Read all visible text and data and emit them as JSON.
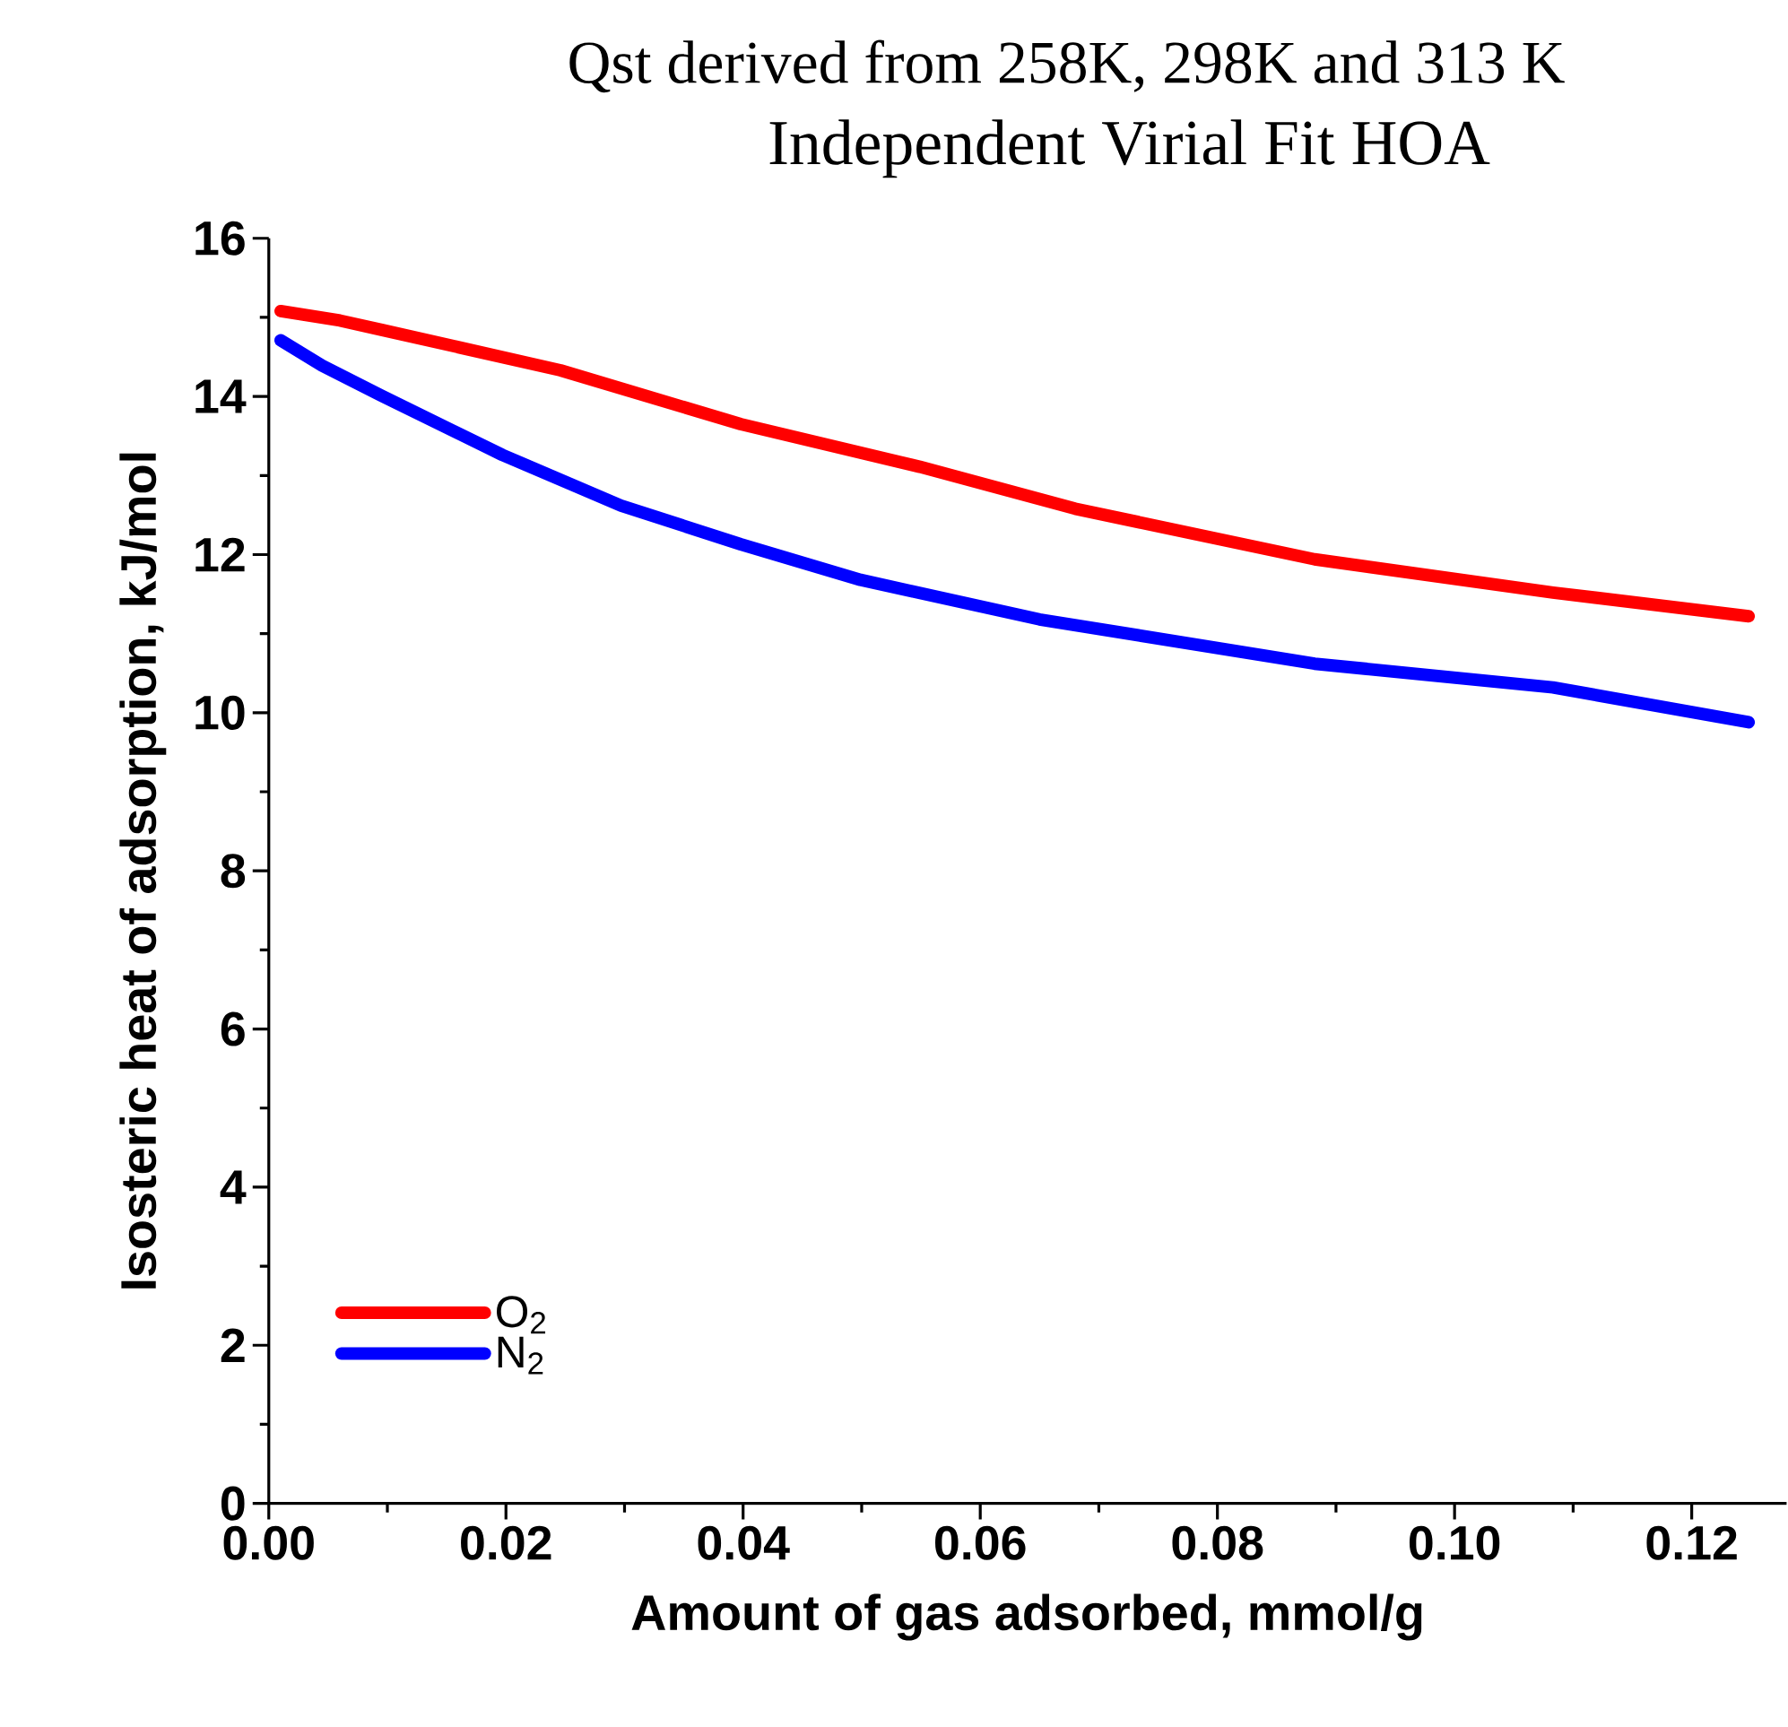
{
  "chart_data": {
    "type": "line",
    "title": "Qst derived from 258K, 298K and 313 K",
    "subtitle": "Independent Virial Fit HOA",
    "xlabel": "Amount of gas adsorbed, mmol/g",
    "ylabel": "Isosteric heat of adsorption, kJ/mol",
    "xlim": [
      0,
      0.128
    ],
    "ylim": [
      0,
      16
    ],
    "xticks": [
      {
        "value": 0,
        "label": "0.00"
      },
      {
        "value": 0.02,
        "label": "0.02"
      },
      {
        "value": 0.04,
        "label": "0.04"
      },
      {
        "value": 0.06,
        "label": "0.06"
      },
      {
        "value": 0.08,
        "label": "0.08"
      },
      {
        "value": 0.1,
        "label": "0.10"
      },
      {
        "value": 0.12,
        "label": "0.12"
      }
    ],
    "yticks": [
      0,
      2,
      4,
      6,
      8,
      10,
      12,
      14,
      16
    ],
    "grid": false,
    "legend": "bottom left",
    "marker": "none",
    "line_style": "solid",
    "series": [
      {
        "name": "O$_{2}$",
        "color": "#ff0000",
        "x": [
          0.001,
          0.006,
          0.0096,
          0.0246,
          0.0398,
          0.0549,
          0.068,
          0.0882,
          0.1083,
          0.1248
        ],
        "values": [
          15.08,
          14.96,
          14.84,
          14.33,
          13.65,
          13.11,
          12.58,
          11.94,
          11.52,
          11.22
        ]
      },
      {
        "name": "N$_{2}$",
        "color": "#0000ff",
        "x": [
          0.001,
          0.0045,
          0.0095,
          0.0197,
          0.0297,
          0.0398,
          0.0499,
          0.065,
          0.0882,
          0.1083,
          0.1248
        ],
        "values": [
          14.71,
          14.39,
          14.01,
          13.26,
          12.62,
          12.13,
          11.68,
          11.18,
          10.62,
          10.32,
          9.88
        ]
      }
    ]
  }
}
